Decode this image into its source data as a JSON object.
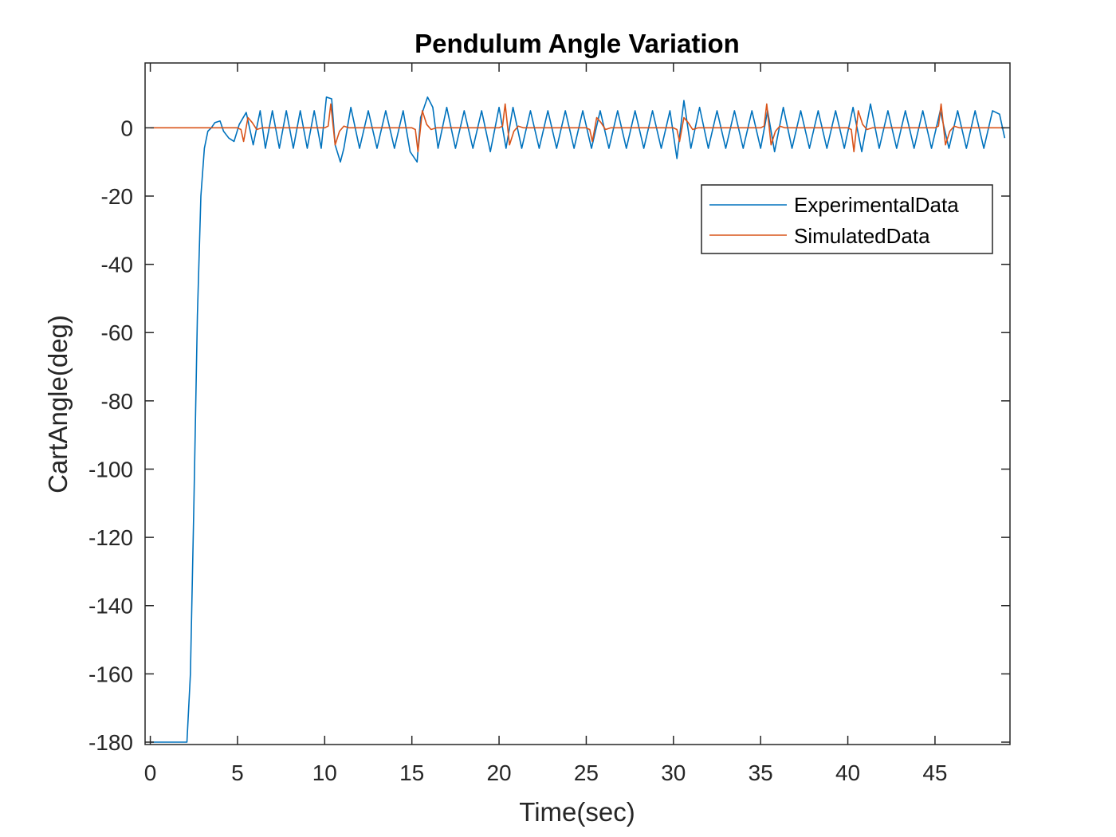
{
  "chart_data": {
    "type": "line",
    "title": "Pendulum Angle Variation",
    "xlabel": "Time(sec)",
    "ylabel": "CartAngle(deg)",
    "xlim": [
      -0.3,
      49.3
    ],
    "ylim": [
      -180.7,
      19
    ],
    "xticks": [
      0,
      5,
      10,
      15,
      20,
      25,
      30,
      35,
      40,
      45
    ],
    "yticks": [
      0,
      -20,
      -40,
      -60,
      -80,
      -100,
      -120,
      -140,
      -160,
      -180
    ],
    "grid": false,
    "legend_position": "top-right",
    "series": [
      {
        "name": "ExperimentalData",
        "color": "#0072BD",
        "x": [
          0,
          2.1,
          2.3,
          2.5,
          2.7,
          2.9,
          3.1,
          3.3,
          3.5,
          3.7,
          4.0,
          4.2,
          4.5,
          4.8,
          5.1,
          5.5,
          5.9,
          6.3,
          6.6,
          7.0,
          7.4,
          7.8,
          8.2,
          8.6,
          9.0,
          9.4,
          9.8,
          10.1,
          10.4,
          10.6,
          10.9,
          11.1,
          11.5,
          12.0,
          12.5,
          13.0,
          13.5,
          14.0,
          14.5,
          14.9,
          15.3,
          15.5,
          15.9,
          16.2,
          16.5,
          17.0,
          17.5,
          18.0,
          18.5,
          19.0,
          19.5,
          20.0,
          20.4,
          20.8,
          21.3,
          21.8,
          22.3,
          22.8,
          23.3,
          23.8,
          24.3,
          24.8,
          25.3,
          25.8,
          26.3,
          26.8,
          27.3,
          27.8,
          28.3,
          28.8,
          29.3,
          29.8,
          30.2,
          30.6,
          31.0,
          31.5,
          32.0,
          32.5,
          33.0,
          33.5,
          34.0,
          34.5,
          35.0,
          35.4,
          35.8,
          36.3,
          36.8,
          37.3,
          37.8,
          38.3,
          38.8,
          39.3,
          39.8,
          40.3,
          40.8,
          41.3,
          41.8,
          42.3,
          42.8,
          43.3,
          43.8,
          44.3,
          44.8,
          45.3,
          45.8,
          46.3,
          46.8,
          47.3,
          47.8,
          48.3,
          48.7,
          49.0
        ],
        "y": [
          -180,
          -180,
          -160,
          -110,
          -55,
          -20,
          -6,
          -1,
          0,
          1.5,
          2,
          -1,
          -3,
          -4,
          1,
          4.5,
          -5,
          5,
          -6,
          5,
          -6,
          5,
          -6,
          5,
          -6,
          5,
          -6,
          9,
          8.5,
          -5,
          -10,
          -6,
          6,
          -6,
          5,
          -6,
          5,
          -6,
          5,
          -7,
          -10,
          3,
          9,
          6,
          -6,
          6,
          -6,
          5,
          -6,
          5,
          -7,
          6,
          -6,
          6,
          -6,
          5,
          -6,
          5,
          -6,
          5,
          -6,
          5,
          -6,
          5,
          -6,
          5,
          -6,
          5,
          -6,
          5,
          -6,
          5,
          -9,
          8,
          -6,
          6,
          -6,
          5,
          -6,
          5,
          -6,
          5,
          -6,
          5,
          -7,
          6,
          -6,
          5,
          -6,
          5,
          -6,
          5,
          -6,
          6,
          -7,
          7,
          -6,
          5,
          -6,
          5,
          -6,
          5,
          -6,
          5,
          -6,
          5,
          -6,
          5,
          -6,
          5,
          4,
          -3
        ]
      },
      {
        "name": "SimulatedData",
        "color": "#D95319",
        "x": [
          0,
          5.0,
          5.2,
          5.35,
          5.6,
          5.85,
          6.1,
          6.4,
          10.0,
          10.2,
          10.35,
          10.6,
          10.85,
          11.1,
          11.4,
          15.0,
          15.2,
          15.35,
          15.6,
          15.85,
          16.1,
          16.4,
          20.0,
          20.2,
          20.35,
          20.6,
          20.85,
          21.1,
          21.4,
          25.0,
          25.2,
          25.35,
          25.6,
          25.85,
          26.1,
          26.4,
          30.0,
          30.2,
          30.35,
          30.6,
          30.85,
          31.1,
          31.4,
          35.0,
          35.2,
          35.35,
          35.6,
          35.85,
          36.1,
          36.4,
          40.0,
          40.2,
          40.35,
          40.6,
          40.85,
          41.1,
          41.4,
          45.0,
          45.2,
          45.35,
          45.6,
          45.85,
          46.1,
          46.4,
          49.0
        ],
        "y": [
          0,
          0,
          -0.5,
          -4,
          3,
          1.5,
          -0.5,
          0,
          0,
          0.5,
          7,
          -5,
          -1,
          0.5,
          0,
          0,
          -0.5,
          -7,
          5,
          1,
          -0.5,
          0,
          0,
          0.5,
          7,
          -5,
          -1,
          0.5,
          0,
          0,
          -0.5,
          -4,
          3,
          1.5,
          -0.5,
          0,
          0,
          -0.5,
          -4,
          3,
          1.5,
          -0.5,
          0,
          0,
          0.5,
          7,
          -5,
          -1,
          0.5,
          0,
          0,
          -0.5,
          -7,
          5,
          1,
          -0.5,
          0,
          0,
          0.5,
          7,
          -5,
          -1,
          0.5,
          0,
          0
        ]
      }
    ]
  }
}
